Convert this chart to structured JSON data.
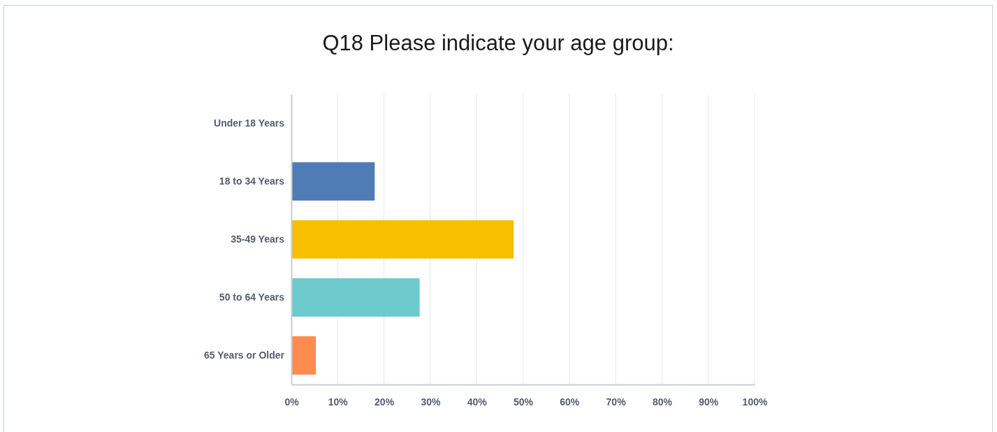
{
  "chart_data": {
    "type": "bar",
    "orientation": "horizontal",
    "title": "Q18 Please indicate your age group:",
    "categories": [
      "Under 18 Years",
      "18 to 34 Years",
      "35-49 Years",
      "50 to 64 Years",
      "65 Years or Older"
    ],
    "values": [
      0,
      18.0,
      48.0,
      27.7,
      5.3
    ],
    "colors": [
      "#4f7cb5",
      "#4f7cb5",
      "#f7bf00",
      "#6ccacd",
      "#ff8b4f"
    ],
    "xlim": [
      0,
      100
    ],
    "xticks": [
      {
        "value": 0,
        "label": "0%"
      },
      {
        "value": 10,
        "label": "10%"
      },
      {
        "value": 20,
        "label": "20%"
      },
      {
        "value": 30,
        "label": "30%"
      },
      {
        "value": 40,
        "label": "40%"
      },
      {
        "value": 50,
        "label": "50%"
      },
      {
        "value": 60,
        "label": "60%"
      },
      {
        "value": 70,
        "label": "70%"
      },
      {
        "value": 80,
        "label": "80%"
      },
      {
        "value": 90,
        "label": "90%"
      },
      {
        "value": 100,
        "label": "100%"
      }
    ],
    "grid": "x"
  }
}
